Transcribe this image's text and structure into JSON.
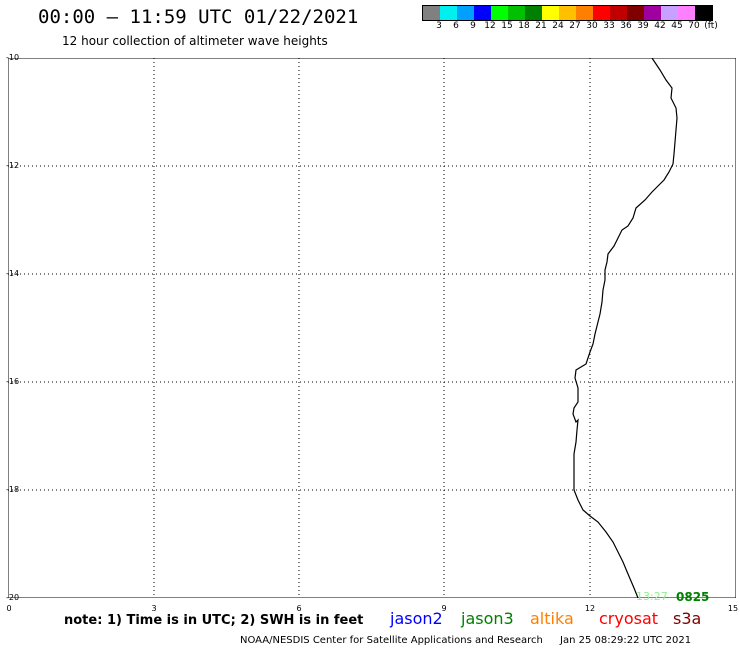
{
  "header": {
    "title": "00:00 – 11:59 UTC 01/22/2021",
    "subtitle": "12 hour collection of altimeter wave heights"
  },
  "colorbar": {
    "colors": [
      "#808080",
      "#00f0f0",
      "#00a0ff",
      "#0000ff",
      "#00ff00",
      "#00c000",
      "#008000",
      "#ffff00",
      "#ffc000",
      "#ff8000",
      "#ff0000",
      "#c00000",
      "#800000",
      "#a000a0",
      "#c8a0ff",
      "#ff80ff",
      "#000000"
    ],
    "labels": [
      "3",
      "6",
      "9",
      "12",
      "15",
      "18",
      "21",
      "24",
      "27",
      "30",
      "33",
      "36",
      "39",
      "42",
      "45",
      "70",
      "(ft)"
    ]
  },
  "map": {
    "y_ticks": [
      "-10",
      "-12",
      "-14",
      "-16",
      "-18",
      "-20"
    ],
    "x_ticks": [
      "0",
      "3",
      "6",
      "9",
      "12",
      "15"
    ]
  },
  "footer": {
    "note": "note: 1) Time is in UTC; 2) SWH is in feet",
    "satellites": [
      {
        "name": "jason2",
        "color": "#0000ff"
      },
      {
        "name": "jason3",
        "color": "#008000"
      },
      {
        "name": "altika",
        "color": "#ff8000"
      },
      {
        "name": "cryosat",
        "color": "#ff0000"
      },
      {
        "name": "s3a",
        "color": "#800000"
      }
    ],
    "credit": "NOAA/NESDIS Center for Satellite Applications and Research",
    "timestamp": "Jan 25 08:29:22 UTC 2021"
  },
  "passes": [
    {
      "label": "13:27",
      "color": "#90ee90"
    },
    {
      "label": "0825",
      "color": "#008000"
    }
  ]
}
